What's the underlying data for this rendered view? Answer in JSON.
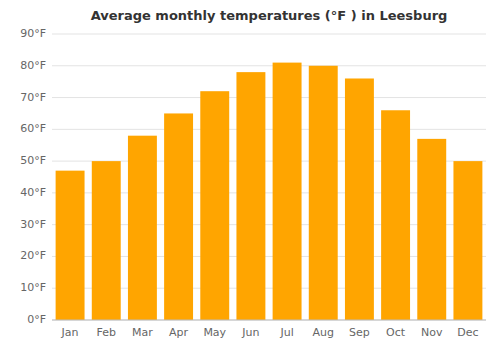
{
  "chart_data": {
    "type": "bar",
    "title": "Average monthly temperatures (°F ) in Leesburg",
    "categories": [
      "Jan",
      "Feb",
      "Mar",
      "Apr",
      "May",
      "Jun",
      "Jul",
      "Aug",
      "Sep",
      "Oct",
      "Nov",
      "Dec"
    ],
    "values": [
      47,
      50,
      58,
      65,
      72,
      78,
      81,
      80,
      76,
      66,
      57,
      50
    ],
    "color": "#FFA500",
    "ylim": [
      0,
      90
    ],
    "yticks": [
      {
        "value": 0,
        "label": "0°F"
      },
      {
        "value": 10,
        "label": "10°F"
      },
      {
        "value": 20,
        "label": "20°F"
      },
      {
        "value": 30,
        "label": "30°F"
      },
      {
        "value": 40,
        "label": "40°F"
      },
      {
        "value": 50,
        "label": "50°F"
      },
      {
        "value": 60,
        "label": "60°F"
      },
      {
        "value": 70,
        "label": "70°F"
      },
      {
        "value": 80,
        "label": "80°F"
      },
      {
        "value": 90,
        "label": "90°F"
      }
    ],
    "grid": true
  }
}
